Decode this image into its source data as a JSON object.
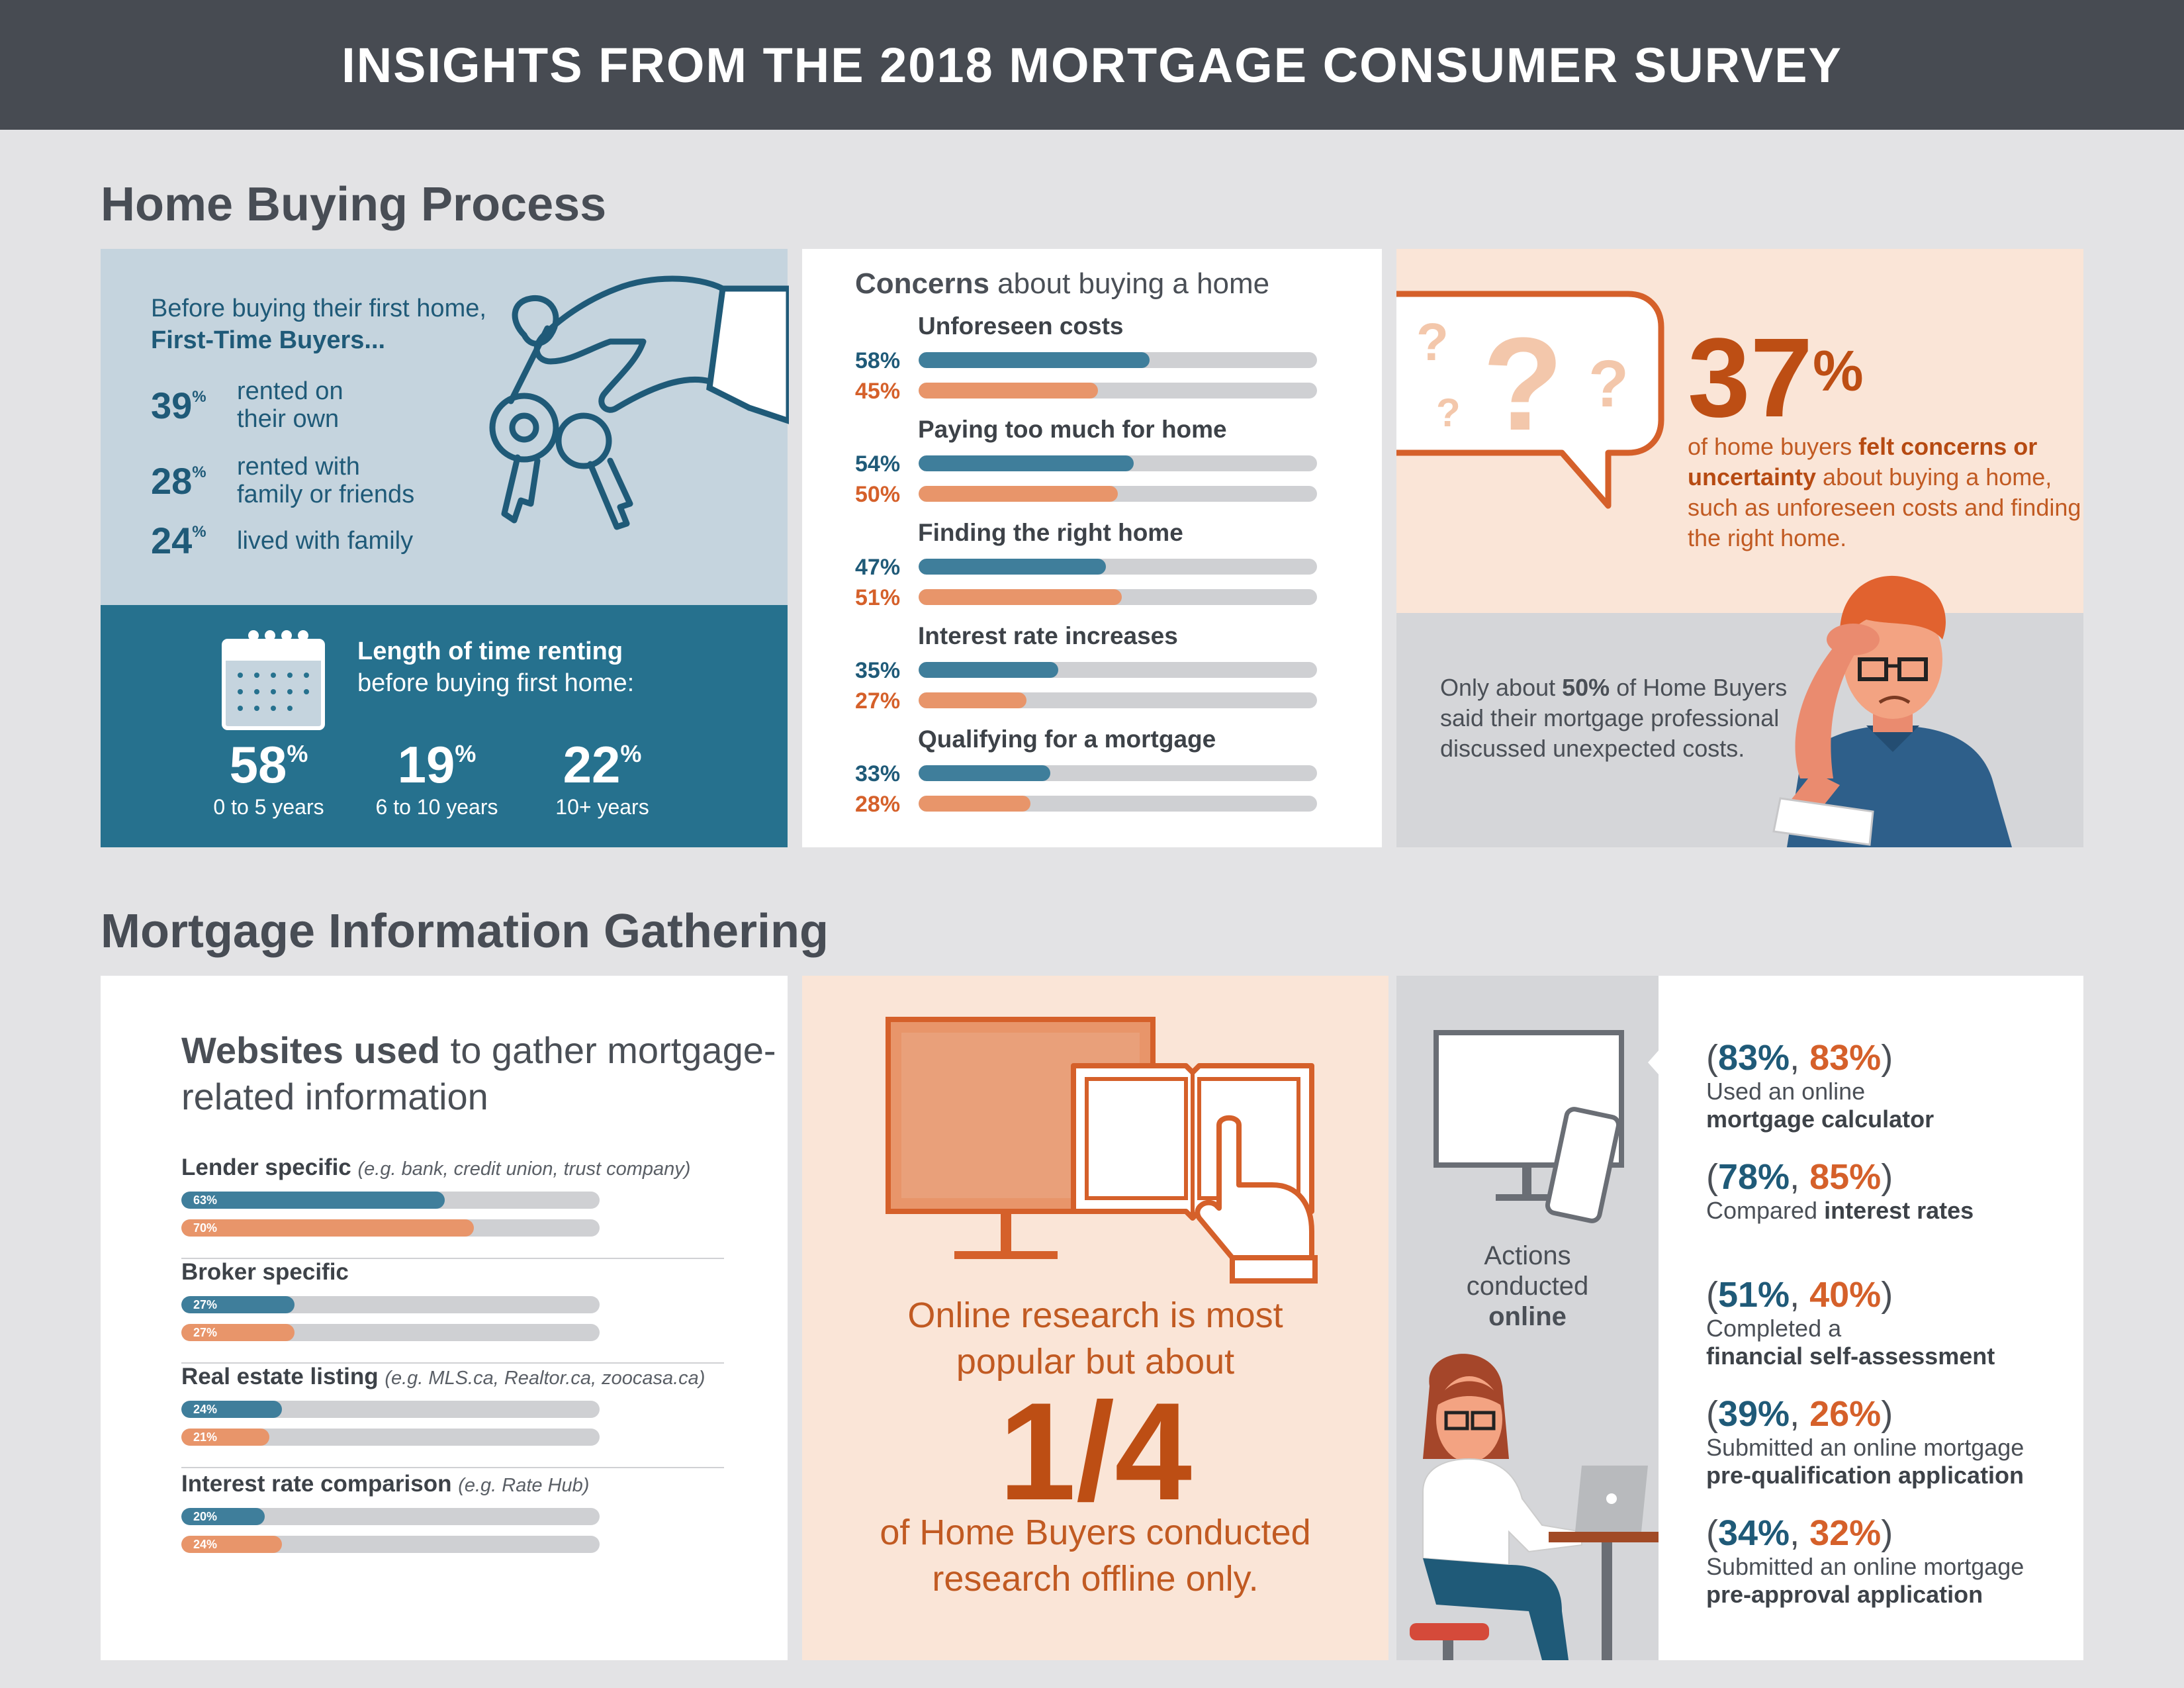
{
  "header": {
    "title": "INSIGHTS FROM THE 2018 MORTGAGE CONSUMER SURVEY"
  },
  "section1": {
    "title": "Home Buying Process"
  },
  "section2": {
    "title": "Mortgage Information Gathering"
  },
  "first_time": {
    "intro_line1": "Before buying their first home,",
    "intro_line2": "First-Time Buyers...",
    "stats": [
      {
        "value": "39",
        "unit": "%",
        "line1": "rented on",
        "line2": "their own"
      },
      {
        "value": "28",
        "unit": "%",
        "line1": "rented with",
        "line2": "family or friends"
      },
      {
        "value": "24",
        "unit": "%",
        "line1": "lived with family",
        "line2": ""
      }
    ]
  },
  "renting": {
    "title_bold": "Length of time renting",
    "title_rest": "before buying first home:",
    "stats": [
      {
        "value": "58",
        "unit": "%",
        "label": "0 to 5 years"
      },
      {
        "value": "19",
        "unit": "%",
        "label": "6 to 10 years"
      },
      {
        "value": "22",
        "unit": "%",
        "label": "10+ years"
      }
    ]
  },
  "concerns": {
    "title_bold": "Concerns",
    "title_rest": " about buying a home",
    "items": [
      {
        "label": "Unforeseen costs",
        "a": 58,
        "b": 45,
        "a_text": "58%",
        "b_text": "45%"
      },
      {
        "label": "Paying too much for home",
        "a": 54,
        "b": 50,
        "a_text": "54%",
        "b_text": "50%"
      },
      {
        "label": "Finding the right home",
        "a": 47,
        "b": 51,
        "a_text": "47%",
        "b_text": "51%"
      },
      {
        "label": "Interest rate increases",
        "a": 35,
        "b": 27,
        "a_text": "35%",
        "b_text": "27%"
      },
      {
        "label": "Qualifying for a mortgage",
        "a": 33,
        "b": 28,
        "a_text": "33%",
        "b_text": "28%"
      }
    ]
  },
  "stat37": {
    "value": "37",
    "unit": "%",
    "pre": "of home buyers ",
    "bold": "felt concerns or uncertainty",
    "post": " about buying a home, such as unforeseen costs and finding the right home."
  },
  "only50": {
    "pre": "Only about ",
    "bold": "50%",
    "post": " of Home Buyers said their mortgage professional discussed unexpected costs."
  },
  "websites": {
    "title_bold": "Websites used",
    "title_rest": " to gather mortgage-related information",
    "items": [
      {
        "label": "Lender specific",
        "note": "(e.g. bank, credit union, trust company)",
        "a": 63,
        "b": 70,
        "a_text": "63%",
        "b_text": "70%"
      },
      {
        "label": "Broker specific",
        "note": "",
        "a": 27,
        "b": 27,
        "a_text": "27%",
        "b_text": "27%"
      },
      {
        "label": "Real estate listing",
        "note": "(e.g. MLS.ca, Realtor.ca, zoocasa.ca)",
        "a": 24,
        "b": 21,
        "a_text": "24%",
        "b_text": "21%"
      },
      {
        "label": "Interest rate comparison",
        "note": "(e.g. Rate Hub)",
        "a": 20,
        "b": 24,
        "a_text": "20%",
        "b_text": "24%"
      }
    ]
  },
  "offline": {
    "line1": "Online research is most",
    "line2": "popular but about",
    "big": "1/4",
    "line3": "of Home Buyers conducted",
    "line4": "research offline only."
  },
  "actions": {
    "label_line1": "Actions",
    "label_line2": "conducted",
    "label_line3": "online",
    "items": [
      {
        "a": "83%",
        "b": "83%",
        "line1_pre": "Used an online",
        "line1_bold": "",
        "line2_bold": "mortgage calculator"
      },
      {
        "a": "78%",
        "b": "85%",
        "line1_pre": "Compared ",
        "line1_bold": "interest rates",
        "line2_bold": ""
      },
      {
        "a": "51%",
        "b": "40%",
        "line1_pre": "Completed a",
        "line1_bold": "",
        "line2_bold": "financial self-assessment"
      },
      {
        "a": "39%",
        "b": "26%",
        "line1_pre": "Submitted an online mortgage",
        "line1_bold": "",
        "line2_bold": "pre-qualification application"
      },
      {
        "a": "34%",
        "b": "32%",
        "line1_pre": "Submitted an online mortgage",
        "line1_bold": "",
        "line2_bold": "pre-approval application"
      }
    ]
  },
  "colors": {
    "blue": "#3f7e9b",
    "orange": "#e8956a",
    "dark_orange": "#bd4e14",
    "navy": "#1f5a78",
    "header": "#474b52"
  },
  "icons": [
    "hand-keys-icon",
    "calendar-icon",
    "question-bubble-icon",
    "confused-man-icon",
    "monitor-icon",
    "book-icon",
    "pointing-hand-icon",
    "computer-icon",
    "phone-icon",
    "woman-laptop-icon"
  ]
}
